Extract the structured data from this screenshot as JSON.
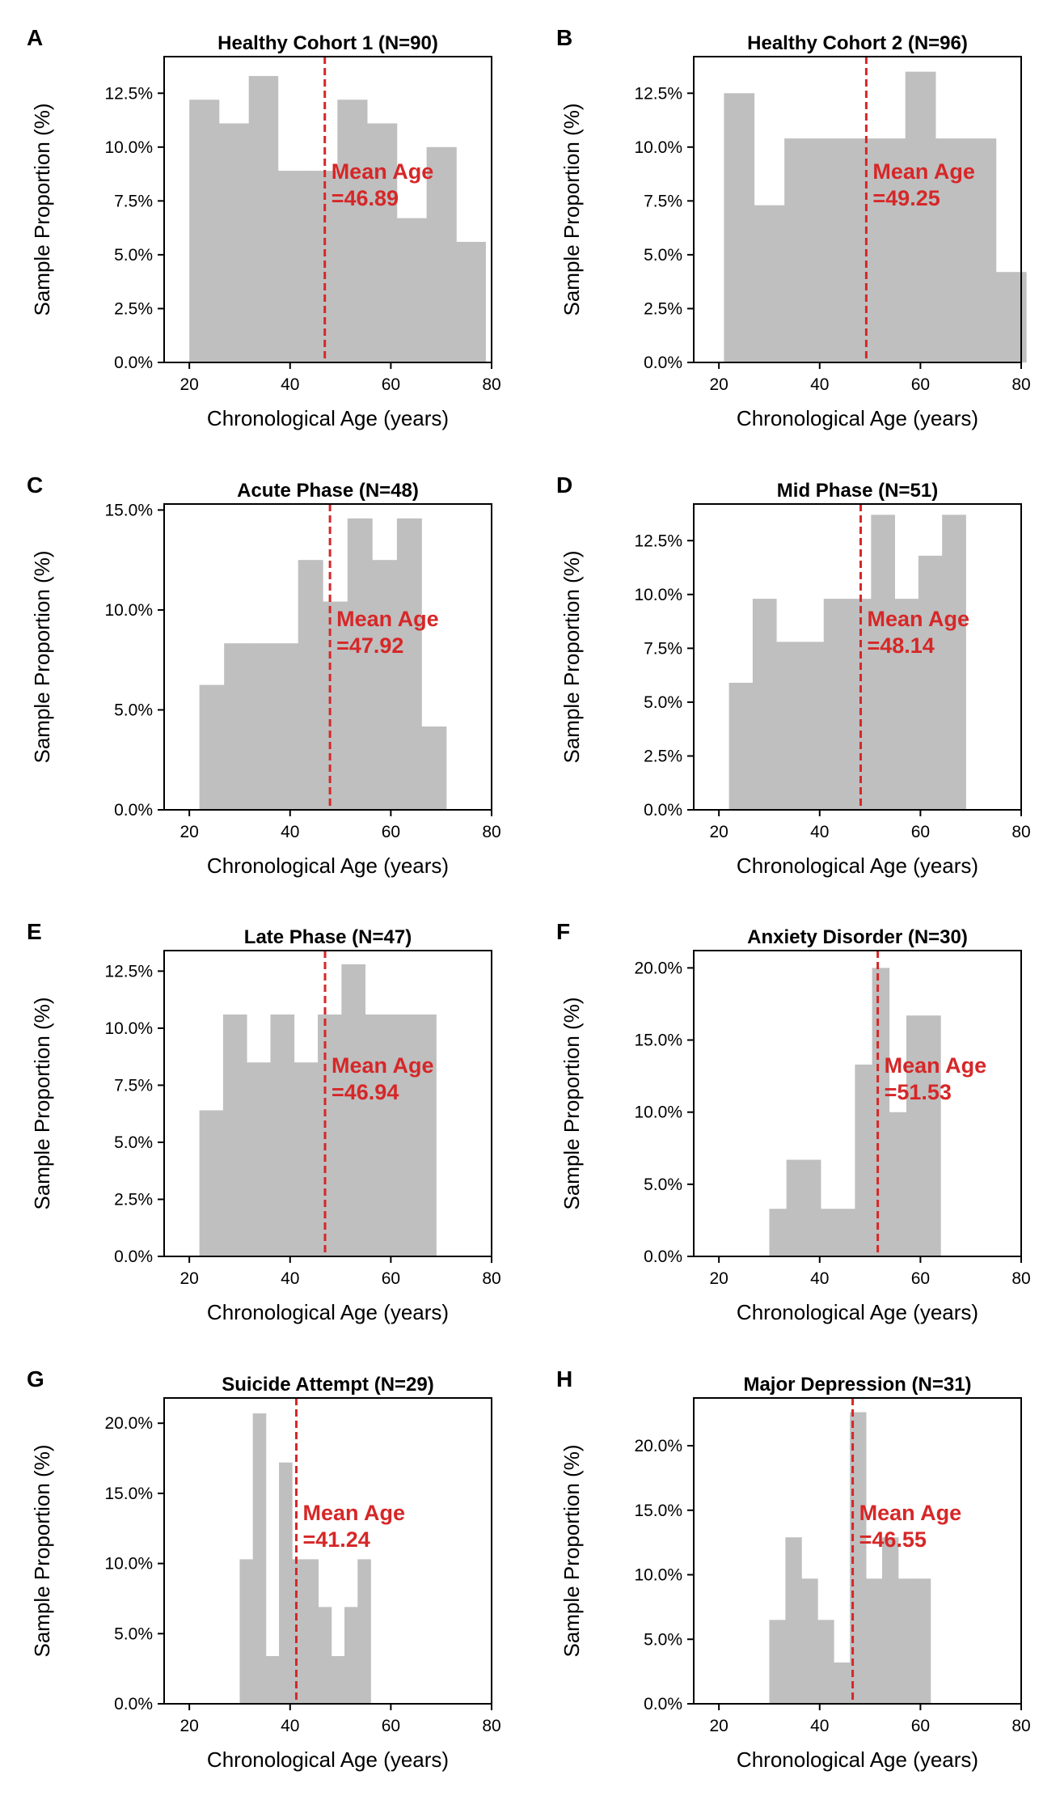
{
  "colors": {
    "bar": "#bfbfbf",
    "mean_line": "#d62728",
    "axis": "#000000"
  },
  "chart_data": [
    {
      "type": "bar",
      "panel": "A",
      "title": "Healthy Cohort 1 (N=90)",
      "xlabel": "Chronological Age (years)",
      "ylabel": "Sample Proportion (%)",
      "xlim": [
        15,
        80
      ],
      "ylim": [
        0,
        14.2
      ],
      "xticks": [
        "20",
        "40",
        "60",
        "80"
      ],
      "yticks": [
        "0.0%",
        "2.5%",
        "5.0%",
        "7.5%",
        "10.0%",
        "12.5%"
      ],
      "ytick_values": [
        0,
        2.5,
        5.0,
        7.5,
        10.0,
        12.5
      ],
      "bin_edges": [
        20.0,
        25.9,
        31.8,
        37.6,
        43.5,
        49.4,
        55.3,
        61.2,
        67.1,
        73.0,
        78.8
      ],
      "values": [
        12.2,
        11.1,
        13.3,
        8.9,
        8.9,
        12.2,
        11.1,
        6.7,
        10.0,
        5.6
      ],
      "mean": 46.89,
      "mean_label": [
        "Mean Age",
        "=46.89"
      ],
      "grid": false
    },
    {
      "type": "bar",
      "panel": "B",
      "title": "Healthy Cohort 2 (N=96)",
      "xlabel": "Chronological Age (years)",
      "ylabel": "Sample Proportion (%)",
      "xlim": [
        15,
        80
      ],
      "ylim": [
        0,
        14.2
      ],
      "xticks": [
        "20",
        "40",
        "60",
        "80"
      ],
      "yticks": [
        "0.0%",
        "2.5%",
        "5.0%",
        "7.5%",
        "10.0%",
        "12.5%"
      ],
      "ytick_values": [
        0,
        2.5,
        5.0,
        7.5,
        10.0,
        12.5
      ],
      "bin_edges": [
        21.0,
        27.0,
        33.0,
        39.0,
        45.0,
        51.0,
        57.0,
        63.0,
        69.0,
        75.0,
        81.0
      ],
      "values": [
        12.5,
        7.3,
        10.4,
        10.4,
        10.4,
        10.4,
        13.5,
        10.4,
        10.4,
        4.2
      ],
      "mean": 49.25,
      "mean_label": [
        "Mean Age",
        "=49.25"
      ],
      "grid": false
    },
    {
      "type": "bar",
      "panel": "C",
      "title": "Acute Phase (N=48)",
      "xlabel": "Chronological Age (years)",
      "ylabel": "Sample Proportion (%)",
      "xlim": [
        15,
        80
      ],
      "ylim": [
        0,
        15.3
      ],
      "xticks": [
        "20",
        "40",
        "60",
        "80"
      ],
      "yticks": [
        "0.0%",
        "5.0%",
        "10.0%",
        "15.0%"
      ],
      "ytick_values": [
        0,
        5.0,
        10.0,
        15.0
      ],
      "bin_edges": [
        22.0,
        26.9,
        31.8,
        36.7,
        41.6,
        46.5,
        51.4,
        56.3,
        61.2,
        66.1,
        71.0
      ],
      "values": [
        6.25,
        8.33,
        8.33,
        8.33,
        12.5,
        10.42,
        14.58,
        12.5,
        14.58,
        4.17
      ],
      "mean": 47.92,
      "mean_label": [
        "Mean Age",
        "=47.92"
      ],
      "grid": false
    },
    {
      "type": "bar",
      "panel": "D",
      "title": "Mid Phase (N=51)",
      "xlabel": "Chronological Age (years)",
      "ylabel": "Sample Proportion (%)",
      "xlim": [
        15,
        80
      ],
      "ylim": [
        0,
        14.2
      ],
      "xticks": [
        "20",
        "40",
        "60",
        "80"
      ],
      "yticks": [
        "0.0%",
        "2.5%",
        "5.0%",
        "7.5%",
        "10.0%",
        "12.5%"
      ],
      "ytick_values": [
        0,
        2.5,
        5.0,
        7.5,
        10.0,
        12.5
      ],
      "bin_edges": [
        22.0,
        26.7,
        31.4,
        36.1,
        40.8,
        45.5,
        50.2,
        54.9,
        59.6,
        64.3,
        69.0
      ],
      "values": [
        5.9,
        9.8,
        7.8,
        7.8,
        9.8,
        9.8,
        13.7,
        9.8,
        11.8,
        13.7
      ],
      "mean": 48.14,
      "mean_label": [
        "Mean Age",
        "=48.14"
      ],
      "grid": false
    },
    {
      "type": "bar",
      "panel": "E",
      "title": "Late Phase (N=47)",
      "xlabel": "Chronological Age (years)",
      "ylabel": "Sample Proportion (%)",
      "xlim": [
        15,
        80
      ],
      "ylim": [
        0,
        13.4
      ],
      "xticks": [
        "20",
        "40",
        "60",
        "80"
      ],
      "yticks": [
        "0.0%",
        "2.5%",
        "5.0%",
        "7.5%",
        "10.0%",
        "12.5%"
      ],
      "ytick_values": [
        0,
        2.5,
        5.0,
        7.5,
        10.0,
        12.5
      ],
      "bin_edges": [
        22.0,
        26.7,
        31.4,
        36.1,
        40.8,
        45.5,
        50.2,
        54.9,
        59.6,
        64.3,
        69.0
      ],
      "values": [
        6.4,
        10.6,
        8.5,
        10.6,
        8.5,
        10.6,
        12.8,
        10.6,
        10.6,
        10.6
      ],
      "mean": 46.94,
      "mean_label": [
        "Mean Age",
        "=46.94"
      ],
      "grid": false
    },
    {
      "type": "bar",
      "panel": "F",
      "title": "Anxiety Disorder (N=30)",
      "xlabel": "Chronological Age (years)",
      "ylabel": "Sample Proportion (%)",
      "xlim": [
        15,
        80
      ],
      "ylim": [
        0,
        21.2
      ],
      "xticks": [
        "20",
        "40",
        "60",
        "80"
      ],
      "yticks": [
        "0.0%",
        "5.0%",
        "10.0%",
        "15.0%",
        "20.0%"
      ],
      "ytick_values": [
        0,
        5.0,
        10.0,
        15.0,
        20.0
      ],
      "bin_edges": [
        30.0,
        33.4,
        36.8,
        40.2,
        43.6,
        47.0,
        50.4,
        53.8,
        57.2,
        60.6,
        64.0
      ],
      "values": [
        3.3,
        6.7,
        6.7,
        3.3,
        3.3,
        13.3,
        20.0,
        10.0,
        16.7,
        16.7
      ],
      "mean": 51.53,
      "mean_label": [
        "Mean Age",
        "=51.53"
      ],
      "grid": false
    },
    {
      "type": "bar",
      "panel": "G",
      "title": "Suicide Attempt (N=29)",
      "xlabel": "Chronological Age (years)",
      "ylabel": "Sample Proportion (%)",
      "xlim": [
        15,
        80
      ],
      "ylim": [
        0,
        21.8
      ],
      "xticks": [
        "20",
        "40",
        "60",
        "80"
      ],
      "yticks": [
        "0.0%",
        "5.0%",
        "10.0%",
        "15.0%",
        "20.0%"
      ],
      "ytick_values": [
        0,
        5.0,
        10.0,
        15.0,
        20.0
      ],
      "bin_edges": [
        30.0,
        32.6,
        35.2,
        37.8,
        40.4,
        43.0,
        45.6,
        48.2,
        50.8,
        53.4,
        56.0
      ],
      "values": [
        10.3,
        20.7,
        3.4,
        17.2,
        10.3,
        10.3,
        6.9,
        3.4,
        6.9,
        10.3
      ],
      "mean": 41.24,
      "mean_label": [
        "Mean Age",
        "=41.24"
      ],
      "grid": false
    },
    {
      "type": "bar",
      "panel": "H",
      "title": "Major Depression (N=31)",
      "xlabel": "Chronological Age (years)",
      "ylabel": "Sample Proportion (%)",
      "xlim": [
        15,
        80
      ],
      "ylim": [
        0,
        23.7
      ],
      "xticks": [
        "20",
        "40",
        "60",
        "80"
      ],
      "yticks": [
        "0.0%",
        "5.0%",
        "10.0%",
        "15.0%",
        "20.0%"
      ],
      "ytick_values": [
        0,
        5.0,
        10.0,
        15.0,
        20.0
      ],
      "bin_edges": [
        30.0,
        33.2,
        36.4,
        39.6,
        42.8,
        46.0,
        49.2,
        52.4,
        55.6,
        58.8,
        62.0
      ],
      "values": [
        6.5,
        12.9,
        9.7,
        6.5,
        3.2,
        22.6,
        9.7,
        12.9,
        9.7,
        9.7
      ],
      "mean": 46.55,
      "mean_label": [
        "Mean Age",
        "=46.55"
      ],
      "grid": false
    }
  ]
}
